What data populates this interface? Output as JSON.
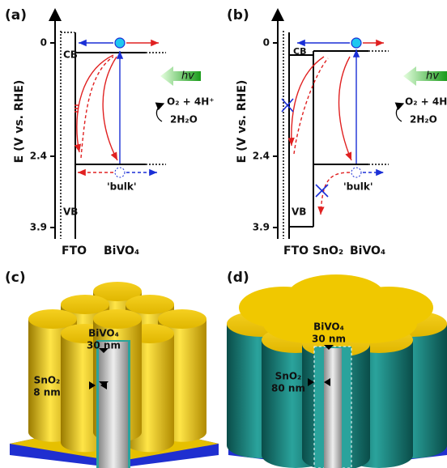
{
  "panels": [
    {
      "label": "(a)",
      "axis_label": "E (V vs. RHE)",
      "ticks": [
        "0",
        "2.4",
        "3.9"
      ],
      "cb": "CB",
      "vb": "VB",
      "layers": [
        "FTO",
        "BiVO₄"
      ],
      "light": "hv",
      "reaction": [
        "O₂ + 4H⁺",
        "2H₂O"
      ],
      "bulk": "'bulk'"
    },
    {
      "label": "(b)",
      "axis_label": "E (V vs. RHE)",
      "ticks": [
        "0",
        "2.4",
        "3.9"
      ],
      "cb": "CB",
      "vb": "VB",
      "layers": [
        "FTO",
        "SnO₂",
        "BiVO₄"
      ],
      "light": "hv",
      "reaction": [
        "O₂ + 4H",
        "2H₂O"
      ],
      "bulk": "'bulk'"
    },
    {
      "label": "(c)",
      "annotations": [
        {
          "material": "BiVO₄",
          "thickness": "30 nm"
        },
        {
          "material": "SnO₂",
          "thickness": "8 nm"
        }
      ]
    },
    {
      "label": "(d)",
      "annotations": [
        {
          "material": "BiVO₄",
          "thickness": "30 nm"
        },
        {
          "material": "SnO₂",
          "thickness": "80 nm"
        }
      ]
    }
  ]
}
